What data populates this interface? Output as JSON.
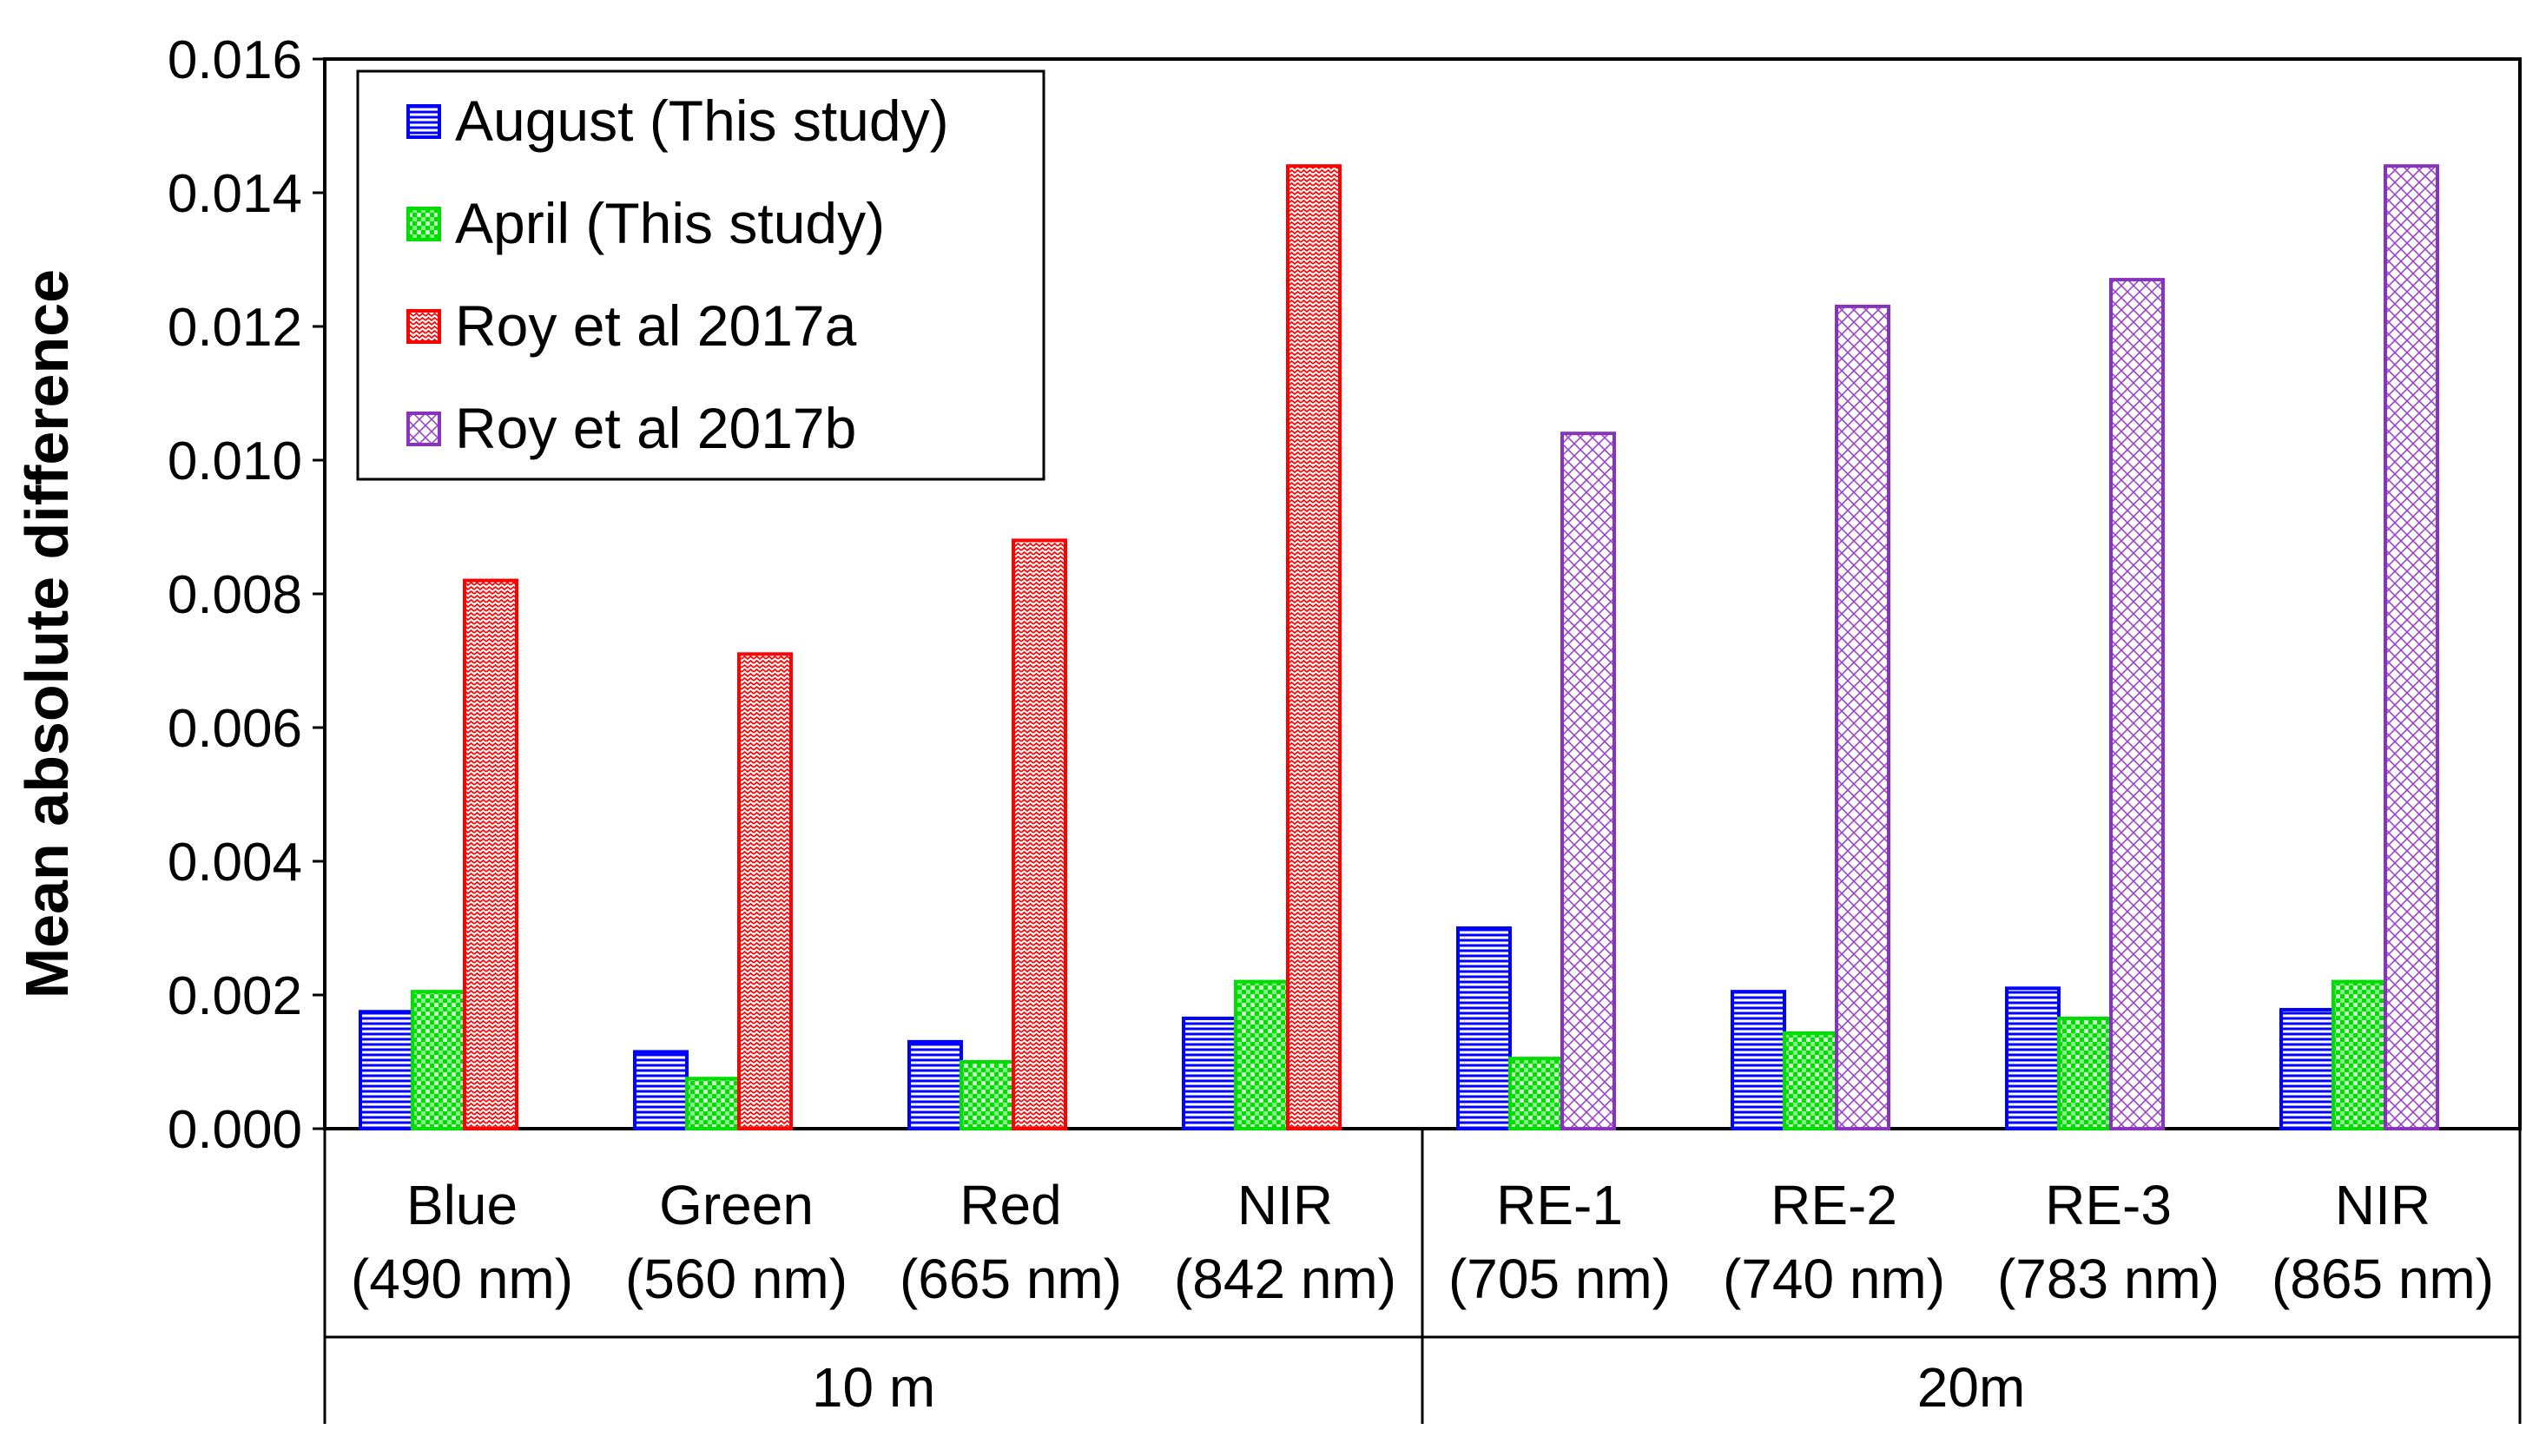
{
  "chart_data": {
    "type": "bar",
    "title": "",
    "xlabel": "",
    "ylabel": "Mean absolute difference",
    "ylim": [
      0,
      0.016
    ],
    "yticks": [
      "0.000",
      "0.002",
      "0.004",
      "0.006",
      "0.008",
      "0.010",
      "0.012",
      "0.014",
      "0.016"
    ],
    "grid": false,
    "legend_position": "top-left",
    "categories": [
      {
        "name": "Blue",
        "wavelength": "(490 nm)"
      },
      {
        "name": "Green",
        "wavelength": "(560 nm)"
      },
      {
        "name": "Red",
        "wavelength": "(665 nm)"
      },
      {
        "name": "NIR",
        "wavelength": "(842 nm)"
      },
      {
        "name": "RE-1",
        "wavelength": "(705 nm)"
      },
      {
        "name": "RE-2",
        "wavelength": "(740 nm)"
      },
      {
        "name": "RE-3",
        "wavelength": "(783 nm)"
      },
      {
        "name": "NIR",
        "wavelength": "(865 nm)"
      }
    ],
    "groups": [
      {
        "label": "10 m",
        "categories": [
          0,
          1,
          2,
          3
        ]
      },
      {
        "label": "20m",
        "categories": [
          4,
          5,
          6,
          7
        ]
      }
    ],
    "series": [
      {
        "name": "August (This study)",
        "color": "#0000ff",
        "pattern": "horizontal-lines",
        "values": [
          0.00175,
          0.00115,
          0.0013,
          0.00165,
          0.003,
          0.00205,
          0.0021,
          0.00178
        ]
      },
      {
        "name": "April (This study)",
        "color": "#00dd00",
        "pattern": "dots",
        "values": [
          0.00205,
          0.00075,
          0.001,
          0.0022,
          0.00105,
          0.00143,
          0.00165,
          0.0022
        ]
      },
      {
        "name": "Roy et al 2017a",
        "color": "#ff0000",
        "pattern": "zigzag",
        "values": [
          0.0082,
          0.0071,
          0.0088,
          0.0144,
          null,
          null,
          null,
          null
        ]
      },
      {
        "name": "Roy et al 2017b",
        "color": "#8833bb",
        "pattern": "crosshatch",
        "values": [
          null,
          null,
          null,
          null,
          0.0104,
          0.0123,
          0.0127,
          0.0144
        ]
      }
    ]
  }
}
